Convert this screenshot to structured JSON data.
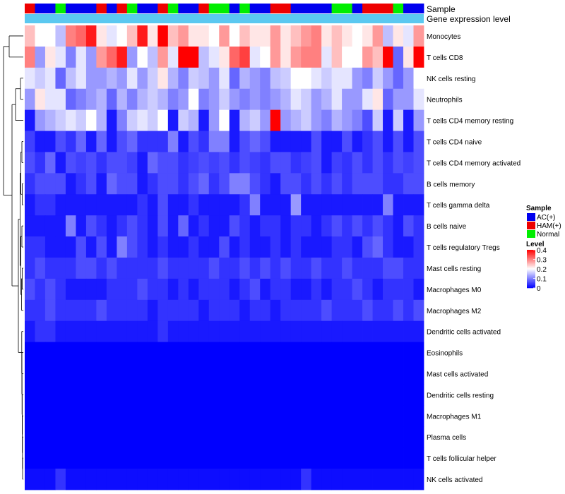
{
  "chart_data": {
    "type": "heatmap",
    "annotation_tracks": [
      "Sample",
      "Gene expression level"
    ],
    "legend": {
      "sample_title": "Sample",
      "sample_entries": [
        {
          "label": "AC(+)",
          "color": "#0000ee"
        },
        {
          "label": "HAM(+)",
          "color": "#ee0000"
        },
        {
          "label": "Normal",
          "color": "#00ee00"
        }
      ],
      "level_title": "Level",
      "level_ticks": [
        "0.4",
        "0.3",
        "0.2",
        "0.1",
        "0"
      ],
      "level_range": [
        0,
        0.4
      ]
    },
    "colors": {
      "low": "#0000ff",
      "mid": "#ffffff",
      "high": "#ff0000",
      "gene_expression_track": "#5bc8f0",
      "AC(+)": "#0000ee",
      "HAM(+)": "#ee0000",
      "Normal": "#00ee00",
      "dendrogram": "#000000"
    },
    "samples": [
      "HAM(+)",
      "AC(+)",
      "AC(+)",
      "Normal",
      "AC(+)",
      "AC(+)",
      "AC(+)",
      "HAM(+)",
      "AC(+)",
      "HAM(+)",
      "Normal",
      "AC(+)",
      "AC(+)",
      "HAM(+)",
      "Normal",
      "AC(+)",
      "AC(+)",
      "HAM(+)",
      "Normal",
      "Normal",
      "AC(+)",
      "Normal",
      "AC(+)",
      "AC(+)",
      "HAM(+)",
      "HAM(+)",
      "AC(+)",
      "AC(+)",
      "AC(+)",
      "AC(+)",
      "Normal",
      "Normal",
      "AC(+)",
      "HAM(+)",
      "HAM(+)",
      "HAM(+)",
      "Normal",
      "AC(+)",
      "AC(+)"
    ],
    "rows": [
      {
        "name": "Monocytes",
        "values": [
          0.25,
          0.2,
          0.2,
          0.15,
          0.3,
          0.32,
          0.38,
          0.22,
          0.18,
          0.2,
          0.25,
          0.38,
          0.22,
          0.4,
          0.25,
          0.28,
          0.22,
          0.22,
          0.2,
          0.28,
          0.2,
          0.25,
          0.22,
          0.22,
          0.28,
          0.22,
          0.25,
          0.28,
          0.3,
          0.22,
          0.25,
          0.22,
          0.2,
          0.22,
          0.28,
          0.15,
          0.22,
          0.18,
          0.28
        ]
      },
      {
        "name": "T cells CD8",
        "values": [
          0.3,
          0.12,
          0.22,
          0.18,
          0.1,
          0.18,
          0.12,
          0.28,
          0.32,
          0.38,
          0.12,
          0.2,
          0.15,
          0.28,
          0.18,
          0.4,
          0.4,
          0.15,
          0.18,
          0.22,
          0.32,
          0.35,
          0.18,
          0.2,
          0.28,
          0.22,
          0.28,
          0.3,
          0.3,
          0.18,
          0.25,
          0.2,
          0.2,
          0.28,
          0.25,
          0.4,
          0.08,
          0.22,
          0.4
        ]
      },
      {
        "name": "NK cells resting",
        "values": [
          0.18,
          0.16,
          0.18,
          0.08,
          0.15,
          0.18,
          0.12,
          0.12,
          0.14,
          0.12,
          0.18,
          0.12,
          0.16,
          0.22,
          0.14,
          0.1,
          0.16,
          0.15,
          0.12,
          0.18,
          0.08,
          0.14,
          0.12,
          0.1,
          0.15,
          0.16,
          0.2,
          0.2,
          0.18,
          0.16,
          0.18,
          0.18,
          0.12,
          0.1,
          0.16,
          0.12,
          0.08,
          0.12,
          0.2
        ]
      },
      {
        "name": "Neutrophils",
        "values": [
          0.12,
          0.22,
          0.18,
          0.18,
          0.08,
          0.1,
          0.12,
          0.14,
          0.08,
          0.14,
          0.1,
          0.14,
          0.16,
          0.14,
          0.1,
          0.12,
          0.2,
          0.1,
          0.12,
          0.16,
          0.12,
          0.1,
          0.12,
          0.1,
          0.12,
          0.14,
          0.18,
          0.16,
          0.12,
          0.14,
          0.18,
          0.12,
          0.12,
          0.18,
          0.22,
          0.08,
          0.12,
          0.12,
          0.18
        ]
      },
      {
        "name": "T cells CD4 memory resting",
        "values": [
          0.02,
          0.12,
          0.14,
          0.16,
          0.18,
          0.16,
          0.2,
          0.14,
          0.02,
          0.1,
          0.16,
          0.18,
          0.16,
          0.2,
          0.02,
          0.16,
          0.14,
          0.02,
          0.12,
          0.2,
          0.02,
          0.14,
          0.16,
          0.12,
          0.4,
          0.12,
          0.14,
          0.16,
          0.12,
          0.1,
          0.14,
          0.12,
          0.1,
          0.06,
          0.16,
          0.02,
          0.16,
          0.02,
          0.12
        ]
      },
      {
        "name": "T cells CD4 naive",
        "values": [
          0.05,
          0.02,
          0.02,
          0.06,
          0.04,
          0.08,
          0.02,
          0.08,
          0.02,
          0.06,
          0.08,
          0.04,
          0.04,
          0.04,
          0.1,
          0.02,
          0.06,
          0.04,
          0.1,
          0.1,
          0.02,
          0.06,
          0.08,
          0.06,
          0.02,
          0.02,
          0.02,
          0.02,
          0.06,
          0.02,
          0.02,
          0.06,
          0.02,
          0.04,
          0.06,
          0.02,
          0.06,
          0.02,
          0.06
        ]
      },
      {
        "name": "T cells CD4 memory activated",
        "values": [
          0.06,
          0.04,
          0.08,
          0.02,
          0.06,
          0.05,
          0.06,
          0.04,
          0.06,
          0.06,
          0.05,
          0.02,
          0.08,
          0.06,
          0.06,
          0.04,
          0.05,
          0.06,
          0.05,
          0.06,
          0.04,
          0.06,
          0.05,
          0.04,
          0.06,
          0.06,
          0.04,
          0.05,
          0.06,
          0.02,
          0.05,
          0.04,
          0.06,
          0.04,
          0.06,
          0.04,
          0.06,
          0.05,
          0.06
        ]
      },
      {
        "name": "B cells memory",
        "values": [
          0.04,
          0.06,
          0.06,
          0.06,
          0.02,
          0.04,
          0.06,
          0.02,
          0.08,
          0.06,
          0.06,
          0.02,
          0.04,
          0.06,
          0.06,
          0.04,
          0.06,
          0.08,
          0.04,
          0.06,
          0.1,
          0.1,
          0.06,
          0.04,
          0.02,
          0.06,
          0.06,
          0.04,
          0.06,
          0.04,
          0.06,
          0.04,
          0.06,
          0.06,
          0.06,
          0.04,
          0.04,
          0.06,
          0.06
        ]
      },
      {
        "name": "T cells gamma delta",
        "values": [
          0.02,
          0.04,
          0.04,
          0.02,
          0.02,
          0.02,
          0.02,
          0.02,
          0.02,
          0.02,
          0.02,
          0.04,
          0.02,
          0.06,
          0.02,
          0.02,
          0.04,
          0.02,
          0.02,
          0.02,
          0.02,
          0.04,
          0.1,
          0.02,
          0.02,
          0.02,
          0.12,
          0.02,
          0.02,
          0.02,
          0.02,
          0.02,
          0.02,
          0.02,
          0.02,
          0.1,
          0.02,
          0.02,
          0.02
        ]
      },
      {
        "name": "B cells naive",
        "values": [
          0.02,
          0.02,
          0.02,
          0.02,
          0.1,
          0.02,
          0.06,
          0.04,
          0.02,
          0.04,
          0.06,
          0.04,
          0.02,
          0.06,
          0.02,
          0.08,
          0.02,
          0.04,
          0.02,
          0.02,
          0.06,
          0.04,
          0.02,
          0.04,
          0.04,
          0.02,
          0.04,
          0.04,
          0.02,
          0.04,
          0.06,
          0.04,
          0.06,
          0.04,
          0.06,
          0.04,
          0.02,
          0.06,
          0.04
        ]
      },
      {
        "name": "T cells regulatory  Tregs",
        "values": [
          0.04,
          0.04,
          0.02,
          0.02,
          0.02,
          0.06,
          0.02,
          0.06,
          0.02,
          0.1,
          0.06,
          0.04,
          0.02,
          0.04,
          0.02,
          0.02,
          0.04,
          0.02,
          0.02,
          0.06,
          0.02,
          0.04,
          0.02,
          0.02,
          0.04,
          0.02,
          0.04,
          0.02,
          0.02,
          0.02,
          0.04,
          0.04,
          0.02,
          0.06,
          0.08,
          0.04,
          0.02,
          0.02,
          0.04
        ]
      },
      {
        "name": "Mast cells resting",
        "values": [
          0.04,
          0.06,
          0.04,
          0.04,
          0.04,
          0.06,
          0.06,
          0.04,
          0.06,
          0.04,
          0.04,
          0.04,
          0.04,
          0.06,
          0.04,
          0.04,
          0.04,
          0.04,
          0.06,
          0.04,
          0.04,
          0.06,
          0.04,
          0.06,
          0.04,
          0.06,
          0.04,
          0.04,
          0.06,
          0.04,
          0.04,
          0.06,
          0.04,
          0.04,
          0.04,
          0.06,
          0.06,
          0.04,
          0.04
        ]
      },
      {
        "name": "Macrophages M0",
        "values": [
          0.06,
          0.04,
          0.06,
          0.04,
          0.02,
          0.02,
          0.02,
          0.02,
          0.04,
          0.04,
          0.04,
          0.06,
          0.04,
          0.04,
          0.02,
          0.04,
          0.02,
          0.04,
          0.04,
          0.04,
          0.02,
          0.04,
          0.06,
          0.02,
          0.04,
          0.04,
          0.02,
          0.02,
          0.04,
          0.02,
          0.04,
          0.04,
          0.06,
          0.04,
          0.02,
          0.04,
          0.04,
          0.04,
          0.02
        ]
      },
      {
        "name": "Macrophages M2",
        "values": [
          0.04,
          0.04,
          0.06,
          0.04,
          0.04,
          0.04,
          0.04,
          0.06,
          0.04,
          0.04,
          0.04,
          0.04,
          0.02,
          0.04,
          0.04,
          0.04,
          0.04,
          0.02,
          0.04,
          0.04,
          0.04,
          0.02,
          0.04,
          0.04,
          0.02,
          0.04,
          0.04,
          0.04,
          0.04,
          0.06,
          0.04,
          0.04,
          0.04,
          0.06,
          0.04,
          0.04,
          0.06,
          0.04,
          0.06
        ]
      },
      {
        "name": "Dendritic cells activated",
        "values": [
          0.02,
          0.04,
          0.04,
          0.02,
          0.02,
          0.02,
          0.02,
          0.02,
          0.02,
          0.02,
          0.02,
          0.02,
          0.02,
          0.04,
          0.02,
          0.02,
          0.02,
          0.02,
          0.02,
          0.02,
          0.02,
          0.02,
          0.02,
          0.02,
          0.02,
          0.02,
          0.02,
          0.02,
          0.02,
          0.02,
          0.02,
          0.02,
          0.02,
          0.02,
          0.02,
          0.02,
          0.02,
          0.02,
          0.02
        ]
      },
      {
        "name": "Eosinophils",
        "values": [
          0.0,
          0.0,
          0.0,
          0.0,
          0.0,
          0.0,
          0.0,
          0.0,
          0.0,
          0.0,
          0.0,
          0.0,
          0.0,
          0.0,
          0.0,
          0.0,
          0.0,
          0.0,
          0.0,
          0.0,
          0.0,
          0.0,
          0.0,
          0.0,
          0.0,
          0.0,
          0.0,
          0.0,
          0.0,
          0.0,
          0.0,
          0.0,
          0.0,
          0.0,
          0.0,
          0.0,
          0.0,
          0.0,
          0.0
        ]
      },
      {
        "name": "Mast cells activated",
        "values": [
          0.0,
          0.0,
          0.0,
          0.0,
          0.0,
          0.0,
          0.0,
          0.0,
          0.0,
          0.0,
          0.0,
          0.0,
          0.0,
          0.0,
          0.0,
          0.0,
          0.0,
          0.0,
          0.0,
          0.0,
          0.0,
          0.0,
          0.0,
          0.0,
          0.0,
          0.0,
          0.0,
          0.0,
          0.0,
          0.0,
          0.0,
          0.0,
          0.0,
          0.0,
          0.0,
          0.0,
          0.0,
          0.0,
          0.0
        ]
      },
      {
        "name": "Dendritic cells resting",
        "values": [
          0.0,
          0.0,
          0.0,
          0.0,
          0.0,
          0.0,
          0.0,
          0.0,
          0.0,
          0.0,
          0.0,
          0.0,
          0.0,
          0.0,
          0.0,
          0.0,
          0.0,
          0.0,
          0.0,
          0.0,
          0.0,
          0.0,
          0.0,
          0.0,
          0.0,
          0.0,
          0.0,
          0.0,
          0.0,
          0.0,
          0.0,
          0.0,
          0.0,
          0.0,
          0.0,
          0.0,
          0.0,
          0.0,
          0.0
        ]
      },
      {
        "name": "Macrophages M1",
        "values": [
          0.0,
          0.0,
          0.0,
          0.0,
          0.0,
          0.0,
          0.0,
          0.0,
          0.0,
          0.0,
          0.0,
          0.0,
          0.0,
          0.0,
          0.0,
          0.0,
          0.0,
          0.0,
          0.0,
          0.0,
          0.0,
          0.0,
          0.0,
          0.0,
          0.0,
          0.0,
          0.0,
          0.0,
          0.0,
          0.0,
          0.0,
          0.0,
          0.0,
          0.0,
          0.0,
          0.0,
          0.0,
          0.0,
          0.0
        ]
      },
      {
        "name": "Plasma cells",
        "values": [
          0.0,
          0.0,
          0.0,
          0.0,
          0.0,
          0.0,
          0.0,
          0.0,
          0.0,
          0.0,
          0.0,
          0.0,
          0.0,
          0.0,
          0.0,
          0.0,
          0.0,
          0.0,
          0.0,
          0.0,
          0.0,
          0.0,
          0.0,
          0.0,
          0.0,
          0.0,
          0.0,
          0.0,
          0.0,
          0.0,
          0.0,
          0.0,
          0.0,
          0.0,
          0.0,
          0.0,
          0.0,
          0.0,
          0.0
        ]
      },
      {
        "name": "T cells follicular helper",
        "values": [
          0.0,
          0.0,
          0.0,
          0.0,
          0.0,
          0.0,
          0.0,
          0.0,
          0.0,
          0.0,
          0.0,
          0.0,
          0.0,
          0.0,
          0.0,
          0.0,
          0.0,
          0.0,
          0.0,
          0.0,
          0.0,
          0.0,
          0.0,
          0.0,
          0.0,
          0.0,
          0.0,
          0.0,
          0.0,
          0.0,
          0.0,
          0.0,
          0.0,
          0.0,
          0.0,
          0.0,
          0.0,
          0.0,
          0.0
        ]
      },
      {
        "name": "NK cells activated",
        "values": [
          0.01,
          0.01,
          0.01,
          0.04,
          0.01,
          0.01,
          0.01,
          0.01,
          0.01,
          0.01,
          0.01,
          0.01,
          0.01,
          0.01,
          0.01,
          0.01,
          0.01,
          0.01,
          0.01,
          0.01,
          0.01,
          0.01,
          0.01,
          0.01,
          0.01,
          0.01,
          0.01,
          0.04,
          0.01,
          0.01,
          0.01,
          0.01,
          0.01,
          0.01,
          0.01,
          0.01,
          0.01,
          0.01,
          0.01
        ]
      }
    ]
  }
}
